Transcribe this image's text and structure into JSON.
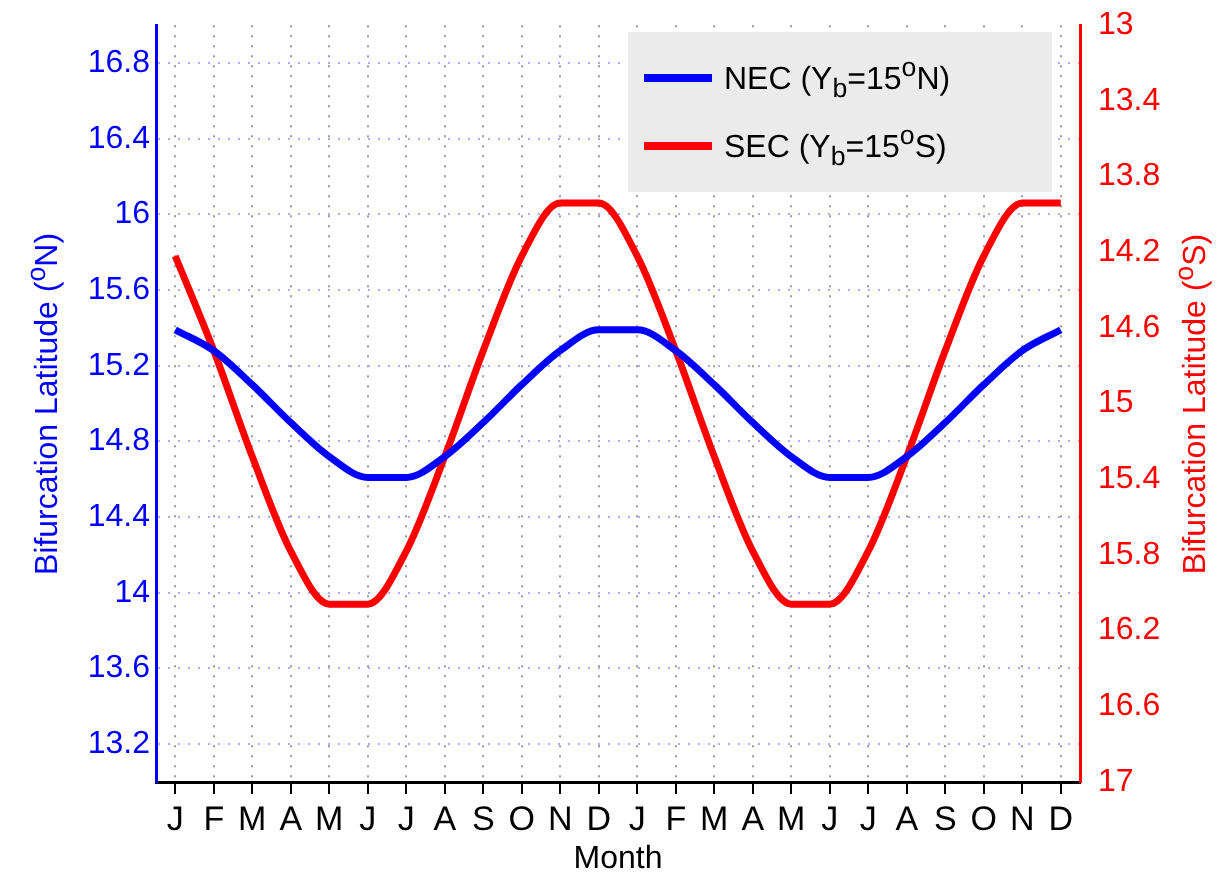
{
  "chart_data": {
    "type": "line",
    "xlabel": "Month",
    "ylabel": "Bifurcation Latitude ($^{o}$N)",
    "y2label": "Bifurcation Latitude ($^{o}$S)",
    "categories": [
      "J",
      "F",
      "M",
      "A",
      "M",
      "J",
      "J",
      "A",
      "S",
      "O",
      "N",
      "D",
      "J",
      "F",
      "M",
      "A",
      "M",
      "J",
      "J",
      "A",
      "S",
      "O",
      "N",
      "D"
    ],
    "ylim": [
      13,
      17
    ],
    "yticks": [
      13.2,
      13.6,
      14,
      14.4,
      14.8,
      15.2,
      15.6,
      16,
      16.4,
      16.8
    ],
    "y2lim": [
      17,
      13
    ],
    "y2ticks": [
      13,
      13.4,
      13.8,
      14.2,
      14.6,
      15,
      15.4,
      15.8,
      16.2,
      16.6,
      17
    ],
    "grid": true,
    "legend": "top right",
    "series": [
      {
        "name": "NEC (Y$_{b}$=15$^{o}$N)",
        "color": "#0000ff",
        "values": [
          15.39,
          15.28,
          15.1,
          14.9,
          14.72,
          14.61,
          14.61,
          14.72,
          14.9,
          15.1,
          15.28,
          15.39,
          15.39,
          15.28,
          15.1,
          14.9,
          14.72,
          14.61,
          14.61,
          14.72,
          14.9,
          15.1,
          15.28,
          15.39
        ]
      },
      {
        "name": "SEC (Y$_{b}$=15$^{o}$S)",
        "color": "#ff0000",
        "axis": "y2",
        "values": [
          14.22,
          14.72,
          15.28,
          15.78,
          16.06,
          16.06,
          15.78,
          15.28,
          14.72,
          14.22,
          13.94,
          13.94,
          14.22,
          14.72,
          15.28,
          15.78,
          16.06,
          16.06,
          15.78,
          15.28,
          14.72,
          14.22,
          13.94,
          13.94
        ]
      }
    ]
  }
}
